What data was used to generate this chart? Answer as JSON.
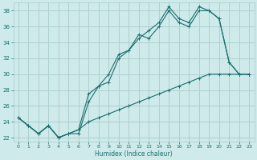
{
  "xlabel": "Humidex (Indice chaleur)",
  "ylabel": "",
  "bg_color": "#ceeaea",
  "grid_color": "#aacccc",
  "line_color": "#1a6e6e",
  "xlim": [
    -0.5,
    23.5
  ],
  "ylim": [
    21.5,
    39
  ],
  "xticks": [
    0,
    1,
    2,
    3,
    4,
    5,
    6,
    7,
    8,
    9,
    10,
    11,
    12,
    13,
    14,
    15,
    16,
    17,
    18,
    19,
    20,
    21,
    22,
    23
  ],
  "yticks": [
    22,
    24,
    26,
    28,
    30,
    32,
    34,
    36,
    38
  ],
  "line1": {
    "x": [
      0,
      1,
      2,
      3,
      4,
      5,
      6,
      7,
      8,
      9,
      10,
      11,
      12,
      13,
      14,
      15,
      16,
      17,
      18,
      19,
      20,
      21,
      22,
      23
    ],
    "y": [
      24.5,
      23.5,
      22.5,
      23.5,
      22,
      22.5,
      22.5,
      26.5,
      28.5,
      30,
      32.5,
      33,
      35,
      34.5,
      36,
      38,
      36.5,
      36,
      38,
      38,
      37,
      31.5,
      30,
      30
    ]
  },
  "line2": {
    "x": [
      0,
      1,
      2,
      3,
      4,
      5,
      6,
      7,
      8,
      9,
      10,
      11,
      12,
      13,
      14,
      15,
      16,
      17,
      18,
      19,
      20,
      21,
      22,
      23
    ],
    "y": [
      24.5,
      23.5,
      22.5,
      23.5,
      22,
      22.5,
      23,
      27.5,
      28.5,
      29,
      32,
      33,
      34.5,
      35.5,
      36.5,
      38.5,
      37,
      36.5,
      38.5,
      38,
      37,
      31.5,
      30,
      30
    ]
  },
  "line3": {
    "x": [
      0,
      1,
      2,
      3,
      4,
      5,
      6,
      7,
      8,
      9,
      10,
      11,
      12,
      13,
      14,
      15,
      16,
      17,
      18,
      19,
      20,
      21,
      22,
      23
    ],
    "y": [
      24.5,
      23.5,
      22.5,
      23.5,
      22,
      22.5,
      23,
      24,
      24.5,
      25,
      25.5,
      26,
      26.5,
      27,
      27.5,
      28,
      28.5,
      29,
      29.5,
      30,
      30,
      30,
      30,
      30
    ]
  }
}
